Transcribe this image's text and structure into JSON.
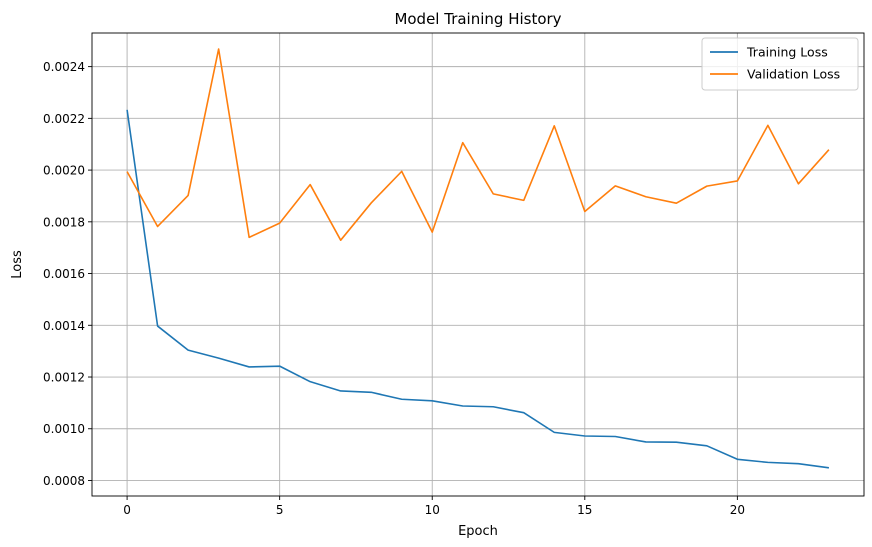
{
  "chart_data": {
    "type": "line",
    "title": "Model Training History",
    "xlabel": "Epoch",
    "ylabel": "Loss",
    "xlim": [
      -1.15,
      24.15
    ],
    "ylim": [
      0.00074,
      0.00253
    ],
    "xticks": [
      0,
      5,
      10,
      15,
      20
    ],
    "xtick_labels": [
      "0",
      "5",
      "10",
      "15",
      "20"
    ],
    "yticks": [
      0.0008,
      0.001,
      0.0012,
      0.0014,
      0.0016,
      0.0018,
      0.002,
      0.0022,
      0.0024
    ],
    "ytick_labels": [
      "0.0008",
      "0.0010",
      "0.0012",
      "0.0014",
      "0.0016",
      "0.0018",
      "0.0020",
      "0.0022",
      "0.0024"
    ],
    "grid": true,
    "legend_position": "top-right",
    "x": [
      0,
      1,
      2,
      3,
      4,
      5,
      6,
      7,
      8,
      9,
      10,
      11,
      12,
      13,
      14,
      15,
      16,
      17,
      18,
      19,
      20,
      21,
      22,
      23
    ],
    "series": [
      {
        "name": "Training Loss",
        "color": "#1f77b4",
        "values": [
          0.002233,
          0.001397,
          0.001304,
          0.001273,
          0.001239,
          0.001242,
          0.001182,
          0.001146,
          0.001141,
          0.001114,
          0.001108,
          0.001088,
          0.001085,
          0.001062,
          0.000986,
          0.000972,
          0.00097,
          0.000949,
          0.000948,
          0.000934,
          0.000882,
          0.00087,
          0.000865,
          0.000849
        ]
      },
      {
        "name": "Validation Loss",
        "color": "#ff7f0e",
        "values": [
          0.001994,
          0.001782,
          0.001902,
          0.002468,
          0.00174,
          0.001795,
          0.001944,
          0.001729,
          0.001873,
          0.001995,
          0.00176,
          0.002106,
          0.001908,
          0.001883,
          0.002171,
          0.00184,
          0.001939,
          0.001897,
          0.001872,
          0.001938,
          0.001958,
          0.002173,
          0.001947,
          0.002079
        ]
      }
    ]
  }
}
